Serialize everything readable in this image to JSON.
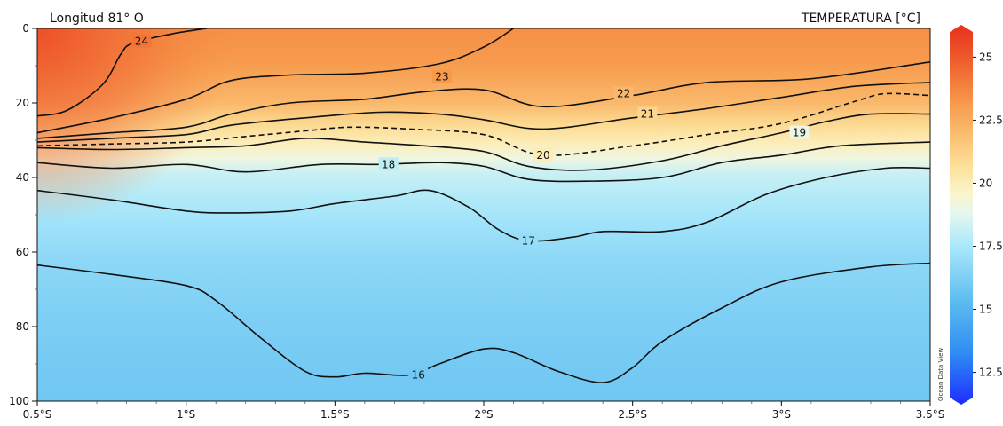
{
  "chart_data": {
    "type": "heatmap",
    "subtitle": "Longitud 81° O",
    "title": "TEMPERATURA [°C]",
    "watermark": "Ocean Data View",
    "x_ticks": [
      "0.5°S",
      "1°S",
      "1.5°S",
      "2°S",
      "2.5°S",
      "3°S",
      "3.5°S"
    ],
    "x_tick_values": [
      0.5,
      1.0,
      1.5,
      2.0,
      2.5,
      3.0,
      3.5
    ],
    "xlim": [
      0.5,
      3.5
    ],
    "y_ticks": [
      "0",
      "20",
      "40",
      "60",
      "80",
      "100"
    ],
    "y_tick_values": [
      0,
      20,
      40,
      60,
      80,
      100
    ],
    "ylim": [
      0,
      100
    ],
    "y_inverted": true,
    "colorbar": {
      "ticks": [
        "12.5",
        "15",
        "17.5",
        "20",
        "22.5",
        "25"
      ],
      "tick_values": [
        12.5,
        15,
        17.5,
        20,
        22.5,
        25
      ],
      "range": [
        11.5,
        26
      ],
      "colors": [
        {
          "v": 11.5,
          "c": "#1d2dff"
        },
        {
          "v": 13.5,
          "c": "#2f8ef2"
        },
        {
          "v": 15.5,
          "c": "#5fbdf0"
        },
        {
          "v": 17.5,
          "c": "#a8e7fb"
        },
        {
          "v": 18.8,
          "c": "#e4f7ee"
        },
        {
          "v": 19.5,
          "c": "#fbf5cf"
        },
        {
          "v": 20.5,
          "c": "#fde39e"
        },
        {
          "v": 21.5,
          "c": "#fbc77a"
        },
        {
          "v": 23.0,
          "c": "#f79a4c"
        },
        {
          "v": 24.5,
          "c": "#f0622e"
        },
        {
          "v": 26.0,
          "c": "#e8301c"
        }
      ]
    },
    "contours": [
      {
        "level": 24,
        "label": "24",
        "dashed": false,
        "label_at": [
          0.85,
          3.5
        ],
        "points": [
          [
            0.5,
            23.5
          ],
          [
            0.6,
            22
          ],
          [
            0.72,
            15
          ],
          [
            0.78,
            7
          ],
          [
            0.82,
            4
          ],
          [
            0.95,
            1.5
          ],
          [
            1.07,
            0
          ]
        ]
      },
      {
        "level": 23,
        "label": "23",
        "dashed": false,
        "label_at": [
          1.86,
          13
        ],
        "points": [
          [
            0.5,
            28
          ],
          [
            0.75,
            24
          ],
          [
            1.0,
            19
          ],
          [
            1.15,
            14
          ],
          [
            1.35,
            12.5
          ],
          [
            1.6,
            12
          ],
          [
            1.85,
            9.5
          ],
          [
            2.0,
            5
          ],
          [
            2.1,
            0
          ]
        ]
      },
      {
        "level": 22,
        "label": "22",
        "dashed": false,
        "label_at": [
          2.47,
          17.5
        ],
        "points": [
          [
            0.5,
            29.5
          ],
          [
            0.75,
            28
          ],
          [
            1.0,
            26.5
          ],
          [
            1.15,
            23
          ],
          [
            1.35,
            20
          ],
          [
            1.6,
            19
          ],
          [
            1.8,
            17
          ],
          [
            2.0,
            16.5
          ],
          [
            2.2,
            21
          ],
          [
            2.5,
            18
          ],
          [
            2.75,
            14.5
          ],
          [
            3.1,
            13.5
          ],
          [
            3.5,
            9
          ]
        ]
      },
      {
        "level": 21,
        "label": "21",
        "dashed": false,
        "label_at": [
          2.55,
          23
        ],
        "points": [
          [
            0.5,
            30.5
          ],
          [
            0.75,
            29.5
          ],
          [
            1.0,
            28.5
          ],
          [
            1.15,
            26
          ],
          [
            1.4,
            24
          ],
          [
            1.65,
            22.5
          ],
          [
            1.85,
            23
          ],
          [
            2.0,
            24.5
          ],
          [
            2.2,
            27
          ],
          [
            2.5,
            24
          ],
          [
            2.75,
            21.5
          ],
          [
            3.0,
            18.5
          ],
          [
            3.25,
            15.5
          ],
          [
            3.5,
            14.5
          ]
        ]
      },
      {
        "level": 20,
        "label": "20",
        "dashed": true,
        "label_at": [
          2.2,
          34
        ],
        "points": [
          [
            0.5,
            31.5
          ],
          [
            0.75,
            31
          ],
          [
            1.0,
            30.5
          ],
          [
            1.2,
            29
          ],
          [
            1.4,
            27.5
          ],
          [
            1.55,
            26.5
          ],
          [
            1.75,
            27
          ],
          [
            2.0,
            28.5
          ],
          [
            2.2,
            34
          ],
          [
            2.5,
            31.5
          ],
          [
            2.75,
            28.5
          ],
          [
            3.0,
            25.5
          ],
          [
            3.25,
            19.5
          ],
          [
            3.35,
            17.5
          ],
          [
            3.5,
            18
          ]
        ]
      },
      {
        "level": 19,
        "label": "19",
        "dashed": false,
        "label_at": [
          3.06,
          28
        ],
        "points": [
          [
            0.5,
            32
          ],
          [
            0.75,
            32.5
          ],
          [
            1.0,
            32
          ],
          [
            1.2,
            31.5
          ],
          [
            1.4,
            29.5
          ],
          [
            1.6,
            30.5
          ],
          [
            1.8,
            31.5
          ],
          [
            2.0,
            33
          ],
          [
            2.15,
            37
          ],
          [
            2.35,
            38
          ],
          [
            2.6,
            35.5
          ],
          [
            2.8,
            31.5
          ],
          [
            3.0,
            28
          ],
          [
            3.15,
            25
          ],
          [
            3.3,
            23
          ],
          [
            3.5,
            23
          ]
        ]
      },
      {
        "level": 18,
        "label": "18",
        "dashed": false,
        "label_at": [
          1.68,
          36.5
        ],
        "points": [
          [
            0.5,
            36
          ],
          [
            0.75,
            37.5
          ],
          [
            1.0,
            36.5
          ],
          [
            1.2,
            38.5
          ],
          [
            1.45,
            36.5
          ],
          [
            1.65,
            36.5
          ],
          [
            1.85,
            36
          ],
          [
            2.0,
            37
          ],
          [
            2.15,
            40.5
          ],
          [
            2.35,
            41
          ],
          [
            2.6,
            40
          ],
          [
            2.8,
            36
          ],
          [
            3.0,
            34
          ],
          [
            3.2,
            31.5
          ],
          [
            3.5,
            30.5
          ]
        ]
      },
      {
        "level": 17,
        "label": "17",
        "dashed": false,
        "label_at": [
          2.15,
          57
        ],
        "points": [
          [
            0.5,
            43.5
          ],
          [
            0.75,
            46
          ],
          [
            1.0,
            49
          ],
          [
            1.15,
            49.5
          ],
          [
            1.35,
            49
          ],
          [
            1.5,
            47
          ],
          [
            1.7,
            45
          ],
          [
            1.82,
            43.5
          ],
          [
            1.95,
            48
          ],
          [
            2.05,
            54
          ],
          [
            2.15,
            57
          ],
          [
            2.3,
            56
          ],
          [
            2.4,
            54.5
          ],
          [
            2.6,
            54.5
          ],
          [
            2.75,
            52
          ],
          [
            2.95,
            44.5
          ],
          [
            3.15,
            40
          ],
          [
            3.35,
            37.5
          ],
          [
            3.5,
            37.5
          ]
        ]
      },
      {
        "level": 16,
        "label": "16",
        "dashed": false,
        "label_at": [
          1.78,
          93
        ],
        "points": [
          [
            0.5,
            63.5
          ],
          [
            0.75,
            66
          ],
          [
            1.0,
            69
          ],
          [
            1.1,
            73
          ],
          [
            1.25,
            83
          ],
          [
            1.4,
            92
          ],
          [
            1.5,
            93.5
          ],
          [
            1.6,
            92.5
          ],
          [
            1.75,
            93
          ],
          [
            1.85,
            90
          ],
          [
            2.0,
            86
          ],
          [
            2.1,
            87
          ],
          [
            2.25,
            92
          ],
          [
            2.4,
            95
          ],
          [
            2.5,
            91
          ],
          [
            2.6,
            84
          ],
          [
            2.8,
            75
          ],
          [
            3.0,
            68
          ],
          [
            3.3,
            64
          ],
          [
            3.5,
            63
          ]
        ]
      }
    ]
  }
}
